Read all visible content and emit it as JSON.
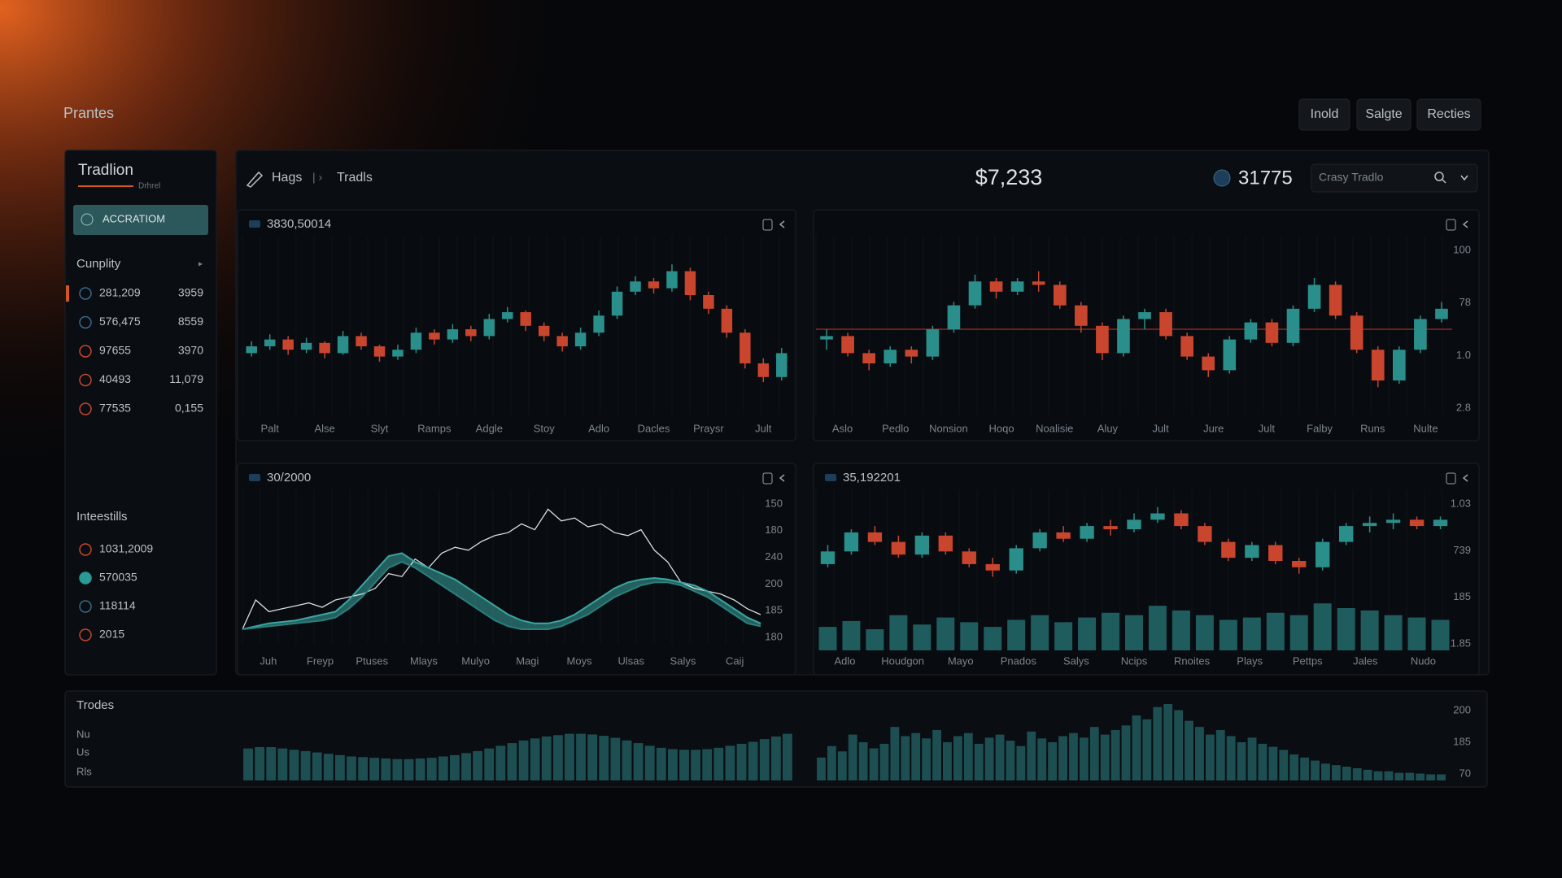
{
  "header": {
    "title": "Prantes",
    "buttons": [
      "Inold",
      "Salgte",
      "Recties"
    ]
  },
  "sidebar": {
    "title": "Tradlion",
    "subtitle": "Drhrel",
    "active_button": "ACCRATIOM",
    "section1": {
      "title": "Cunplity",
      "rows": [
        [
          "281,209",
          "3959"
        ],
        [
          "576,475",
          "8559"
        ],
        [
          "97655",
          "3970"
        ],
        [
          "40493",
          "11,079"
        ],
        [
          "77535",
          "0,155"
        ]
      ]
    },
    "section2": {
      "title": "Inteestills",
      "rows": [
        "1031,2009",
        "570035",
        "118114",
        "2015"
      ]
    }
  },
  "toolbar": {
    "breadcrumb": [
      "Hags",
      "Tradls"
    ],
    "price": "$7,233",
    "badge": "31775",
    "search_placeholder": "Crasy Tradlo"
  },
  "trades": {
    "title": "Trodes",
    "labels": [
      "Nu",
      "Us",
      "Rls"
    ]
  },
  "chart_data": [
    {
      "type": "candlestick",
      "label": "3830,50014",
      "up_color": "#2a8f8a",
      "down_color": "#c9452e",
      "ylim": [
        0,
        100
      ],
      "x_labels": [
        "Palt",
        "Alse",
        "Slyt",
        "Ramps",
        "Adgle",
        "Stoy",
        "Adlo",
        "Dacles",
        "Praysr",
        "Jult"
      ],
      "candles": [
        [
          36,
          43,
          34,
          40
        ],
        [
          40,
          47,
          38,
          44
        ],
        [
          44,
          46,
          35,
          38
        ],
        [
          38,
          45,
          36,
          42
        ],
        [
          42,
          43,
          33,
          36
        ],
        [
          36,
          49,
          35,
          46
        ],
        [
          46,
          48,
          38,
          40
        ],
        [
          40,
          41,
          31,
          34
        ],
        [
          34,
          41,
          32,
          38
        ],
        [
          38,
          51,
          36,
          48
        ],
        [
          48,
          50,
          41,
          44
        ],
        [
          44,
          53,
          42,
          50
        ],
        [
          50,
          52,
          43,
          46
        ],
        [
          46,
          59,
          44,
          56
        ],
        [
          56,
          63,
          54,
          60
        ],
        [
          60,
          61,
          49,
          52
        ],
        [
          52,
          54,
          43,
          46
        ],
        [
          46,
          48,
          37,
          40
        ],
        [
          40,
          51,
          38,
          48
        ],
        [
          48,
          61,
          46,
          58
        ],
        [
          58,
          75,
          56,
          72
        ],
        [
          72,
          81,
          70,
          78
        ],
        [
          78,
          80,
          71,
          74
        ],
        [
          74,
          88,
          72,
          84
        ],
        [
          84,
          86,
          67,
          70
        ],
        [
          70,
          72,
          59,
          62
        ],
        [
          62,
          64,
          45,
          48
        ],
        [
          48,
          50,
          27,
          30
        ],
        [
          30,
          33,
          19,
          22
        ],
        [
          22,
          39,
          20,
          36
        ]
      ]
    },
    {
      "type": "candlestick",
      "up_color": "#2a8f8a",
      "down_color": "#c9452e",
      "ylim": [
        0,
        100
      ],
      "ref_line": 50,
      "ref_color": "#8a2a1e",
      "y_labels": [
        "100",
        "78",
        "1.0",
        "2.8"
      ],
      "x_labels": [
        "Aslo",
        "Pedlo",
        "Nonsion",
        "Hoqo",
        "Noalisie",
        "Aluy",
        "Jult",
        "Jure",
        "Jult",
        "Falby",
        "Runs",
        "Nulte"
      ],
      "candles": [
        [
          44,
          50,
          38,
          46
        ],
        [
          46,
          48,
          34,
          36
        ],
        [
          36,
          38,
          26,
          30
        ],
        [
          30,
          40,
          28,
          38
        ],
        [
          38,
          40,
          30,
          34
        ],
        [
          34,
          52,
          32,
          50
        ],
        [
          50,
          66,
          48,
          64
        ],
        [
          64,
          82,
          62,
          78
        ],
        [
          78,
          80,
          68,
          72
        ],
        [
          72,
          80,
          70,
          78
        ],
        [
          78,
          84,
          72,
          76
        ],
        [
          76,
          78,
          62,
          64
        ],
        [
          64,
          66,
          48,
          52
        ],
        [
          52,
          54,
          32,
          36
        ],
        [
          36,
          58,
          34,
          56
        ],
        [
          56,
          62,
          50,
          60
        ],
        [
          60,
          62,
          44,
          46
        ],
        [
          46,
          48,
          32,
          34
        ],
        [
          34,
          36,
          22,
          26
        ],
        [
          26,
          46,
          24,
          44
        ],
        [
          44,
          56,
          42,
          54
        ],
        [
          54,
          56,
          40,
          42
        ],
        [
          42,
          64,
          40,
          62
        ],
        [
          62,
          80,
          60,
          76
        ],
        [
          76,
          78,
          56,
          58
        ],
        [
          58,
          60,
          36,
          38
        ],
        [
          38,
          40,
          16,
          20
        ],
        [
          20,
          40,
          18,
          38
        ],
        [
          38,
          58,
          36,
          56
        ],
        [
          56,
          66,
          54,
          62
        ]
      ]
    },
    {
      "type": "line",
      "label": "30/2000",
      "ylim": [
        0,
        100
      ],
      "band": true,
      "y_labels": [
        "150",
        "180",
        "240",
        "200",
        "185",
        "180"
      ],
      "x_labels": [
        "Juh",
        "Freyp",
        "Ptuses",
        "Mlays",
        "Mulyo",
        "Magi",
        "Moys",
        "Ulsas",
        "Salys",
        "Caij"
      ],
      "series": [
        {
          "color": "#d9dde0",
          "values": [
            10,
            30,
            22,
            24,
            26,
            28,
            25,
            30,
            32,
            34,
            38,
            48,
            46,
            58,
            52,
            62,
            66,
            64,
            70,
            74,
            76,
            82,
            78,
            92,
            84,
            86,
            80,
            82,
            76,
            74,
            78,
            64,
            56,
            42,
            38,
            36,
            34,
            30,
            24,
            20
          ]
        },
        {
          "color": "#3aa6a0",
          "values": [
            10,
            12,
            14,
            15,
            16,
            18,
            20,
            22,
            30,
            40,
            50,
            60,
            62,
            56,
            52,
            48,
            44,
            38,
            32,
            26,
            20,
            16,
            14,
            14,
            16,
            20,
            26,
            32,
            38,
            42,
            44,
            45,
            44,
            42,
            40,
            36,
            30,
            24,
            18,
            14
          ]
        },
        {
          "color": "#2a7f7b",
          "values": [
            10,
            11,
            12,
            13,
            14,
            15,
            16,
            18,
            24,
            32,
            42,
            52,
            56,
            52,
            46,
            40,
            34,
            28,
            22,
            16,
            12,
            10,
            10,
            10,
            12,
            16,
            20,
            26,
            32,
            36,
            40,
            42,
            42,
            40,
            36,
            32,
            26,
            20,
            14,
            12
          ]
        }
      ]
    },
    {
      "type": "candlestick",
      "label": "35,192201",
      "up_color": "#2a8f8a",
      "down_color": "#c9452e",
      "ylim": [
        40,
        100
      ],
      "volume_lim": [
        0,
        45
      ],
      "volume_color": "#1f5c5e",
      "y_labels": [
        "1.03",
        "739",
        "185",
        "1.85"
      ],
      "x_labels": [
        "Adlo",
        "Houdgon",
        "Mayo",
        "Pnados",
        "Salys",
        "Ncips",
        "Rnoites",
        "Plays",
        "Pettps",
        "Jales",
        "Nudo"
      ],
      "candles": [
        [
          58,
          70,
          56,
          66
        ],
        [
          66,
          80,
          64,
          78
        ],
        [
          78,
          82,
          70,
          72
        ],
        [
          72,
          76,
          62,
          64
        ],
        [
          64,
          78,
          62,
          76
        ],
        [
          76,
          78,
          64,
          66
        ],
        [
          66,
          68,
          56,
          58
        ],
        [
          58,
          62,
          50,
          54
        ],
        [
          54,
          70,
          52,
          68
        ],
        [
          68,
          80,
          66,
          78
        ],
        [
          78,
          82,
          72,
          74
        ],
        [
          74,
          84,
          72,
          82
        ],
        [
          82,
          86,
          76,
          80
        ],
        [
          80,
          90,
          78,
          86
        ],
        [
          86,
          94,
          84,
          90
        ],
        [
          90,
          92,
          80,
          82
        ],
        [
          82,
          84,
          70,
          72
        ],
        [
          72,
          74,
          60,
          62
        ],
        [
          62,
          72,
          60,
          70
        ],
        [
          70,
          72,
          58,
          60
        ],
        [
          60,
          62,
          52,
          56
        ],
        [
          56,
          74,
          54,
          72
        ],
        [
          72,
          84,
          70,
          82
        ],
        [
          82,
          88,
          78,
          84
        ],
        [
          84,
          90,
          80,
          86
        ],
        [
          86,
          88,
          80,
          82
        ],
        [
          82,
          88,
          80,
          86
        ]
      ],
      "volume": [
        20,
        25,
        18,
        30,
        22,
        28,
        24,
        20,
        26,
        30,
        24,
        28,
        32,
        30,
        38,
        34,
        30,
        26,
        28,
        32,
        30,
        40,
        36,
        34,
        30,
        28,
        26
      ]
    },
    {
      "type": "bar",
      "color": "#1d4f52",
      "ylim": [
        0,
        100
      ],
      "values": [
        48,
        50,
        50,
        48,
        46,
        44,
        42,
        40,
        38,
        36,
        35,
        34,
        33,
        32,
        32,
        33,
        34,
        36,
        38,
        41,
        44,
        48,
        52,
        56,
        60,
        63,
        66,
        68,
        70,
        70,
        69,
        67,
        64,
        60,
        56,
        52,
        49,
        47,
        46,
        46,
        47,
        49,
        52,
        55,
        58,
        62,
        66,
        70
      ]
    },
    {
      "type": "bar",
      "color": "#1d4f52",
      "ylim": [
        0,
        100
      ],
      "y_labels": [
        "200",
        "185",
        "70"
      ],
      "values": [
        30,
        45,
        38,
        60,
        50,
        42,
        48,
        70,
        58,
        62,
        55,
        66,
        50,
        58,
        62,
        48,
        56,
        60,
        52,
        45,
        64,
        55,
        50,
        58,
        62,
        56,
        70,
        60,
        66,
        72,
        85,
        80,
        96,
        100,
        92,
        78,
        70,
        60,
        66,
        58,
        50,
        56,
        48,
        44,
        40,
        34,
        30,
        26,
        22,
        20,
        18,
        16,
        14,
        12,
        12,
        10,
        10,
        9,
        8,
        8
      ]
    }
  ]
}
